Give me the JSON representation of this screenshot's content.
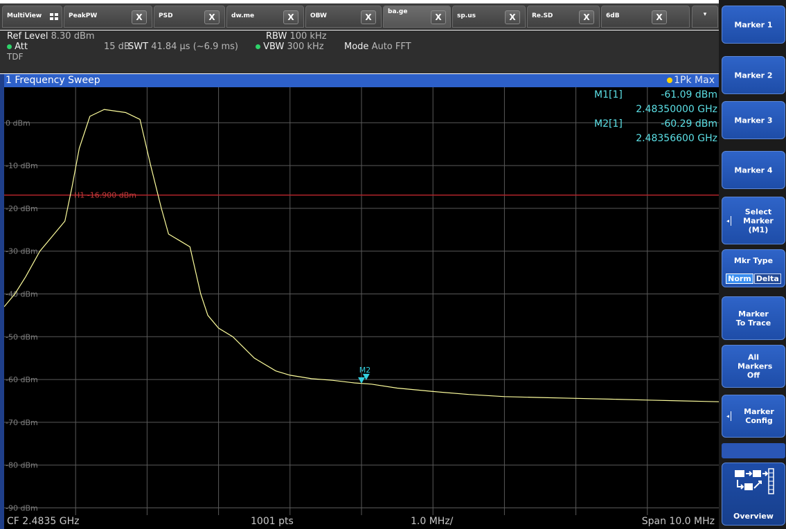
{
  "tabs": [
    {
      "label": "MultiView",
      "close": ""
    },
    {
      "label": "PeakPW",
      "close": "X"
    },
    {
      "label": "PSD",
      "close": "X"
    },
    {
      "label": "dw.me",
      "close": "X"
    },
    {
      "label": "OBW",
      "close": "X"
    },
    {
      "label": "ba.ge",
      "close": "X"
    },
    {
      "label": "sp.us",
      "close": "X"
    },
    {
      "label": "Re.SD",
      "close": "X"
    },
    {
      "label": "6dB",
      "close": "X"
    }
  ],
  "tab_dropdown": "▾",
  "settings": {
    "ref_level_label": "Ref Level",
    "ref_level_value": "8.30 dBm",
    "att_label": "Att",
    "att_value": "15 dB",
    "swt_label": "SWT",
    "swt_value": "41.84 µs (~6.9 ms)",
    "rbw_label": "RBW",
    "rbw_value": "100 kHz",
    "vbw_label": "VBW",
    "vbw_value": "300 kHz",
    "mode_label": "Mode",
    "mode_value": "Auto FFT",
    "tdf": "TDF"
  },
  "diagram": {
    "title": "1 Frequency Sweep",
    "trace_label": "1Pk Max"
  },
  "markers": {
    "m1_label": "M1[1]",
    "m1_level": "-61.09 dBm",
    "m1_freq": "2.48350000 GHz",
    "m2_label": "M2[1]",
    "m2_level": "-60.29 dBm",
    "m2_freq": "2.48356600 GHz",
    "plot_marker_label": "M2",
    "plot_marker_label_hidden": "M1"
  },
  "limit_line": {
    "label": "H1",
    "value": "-16.900 dBm"
  },
  "bottom": {
    "cf": "CF 2.4835 GHz",
    "pts": "1001 pts",
    "div": "1.0 MHz/",
    "span": "Span 10.0 MHz"
  },
  "softkeys": {
    "marker1": "Marker 1",
    "marker2": "Marker 2",
    "marker3": "Marker 3",
    "marker4": "Marker 4",
    "select_marker": "Select Marker (M1)",
    "mkr_type": "Mkr Type",
    "norm": "Norm",
    "delta": "Delta",
    "marker_to_trace": "Marker To Trace",
    "all_markers_off": "All Markers Off",
    "marker_config": "Marker Config",
    "overview": "Overview"
  },
  "chart_data": {
    "type": "line",
    "xlabel": "",
    "ylabel": "",
    "xlim": [
      0,
      10
    ],
    "ylim": [
      -91.7,
      8.3
    ],
    "y_ticks": [
      "0 dBm",
      "-10 dBm",
      "-20 dBm",
      "-30 dBm",
      "-40 dBm",
      "-50 dBm",
      "-60 dBm",
      "-70 dBm",
      "-80 dBm",
      "-90 dBm"
    ],
    "y_tick_values": [
      0,
      -10,
      -20,
      -30,
      -40,
      -50,
      -60,
      -70,
      -80,
      -90
    ],
    "limit_value": -16.9,
    "trace_color": "#ffff9e",
    "grid": true,
    "series": [
      {
        "x": [
          0,
          0.15,
          0.3,
          0.5,
          0.7,
          0.85,
          0.95,
          1.05,
          1.2,
          1.4,
          1.7,
          1.9,
          2.05,
          2.2,
          2.3,
          2.45,
          2.6,
          2.75,
          2.85,
          3.0,
          3.2,
          3.5,
          3.8,
          4.0,
          4.3,
          4.6,
          4.9,
          5.14,
          5.5,
          6.0,
          6.5,
          7.0,
          7.5,
          8.0,
          8.5,
          9.0,
          9.5,
          10.0
        ],
        "y": [
          -43,
          -40,
          -36,
          -30,
          -26,
          -23,
          -15,
          -6,
          1.5,
          3.1,
          2.4,
          0.8,
          -10,
          -20,
          -26,
          -27.5,
          -29,
          -40,
          -45,
          -48,
          -50,
          -55,
          -58,
          -59,
          -59.8,
          -60.2,
          -60.8,
          -61.09,
          -62,
          -62.8,
          -63.5,
          -64,
          -64.2,
          -64.4,
          -64.6,
          -64.8,
          -65,
          -65.2
        ]
      }
    ],
    "markers": [
      {
        "name": "M1",
        "x": 5.0,
        "y": -61.09
      },
      {
        "name": "M2",
        "x": 5.066,
        "y": -60.29
      }
    ]
  }
}
